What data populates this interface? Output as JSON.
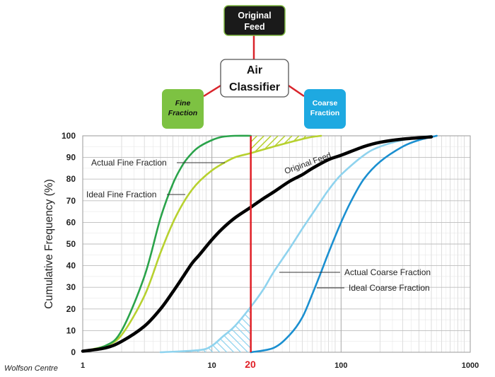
{
  "diagram": {
    "original_feed": {
      "line1": "Original",
      "line2": "Feed",
      "color": "#1a1a1a"
    },
    "classifier": {
      "line1": "Air",
      "line2": "Classifier"
    },
    "fine": {
      "line1": "Fine",
      "line2": "Fraction",
      "color": "#7dc242"
    },
    "coarse": {
      "line1": "Coarse",
      "line2": "Fraction",
      "color": "#1ea9e1"
    },
    "connector_color": "#d9242b"
  },
  "credit": "Wolfson Centre",
  "chart_data": {
    "type": "line",
    "x_scale": "log",
    "xlim": [
      1,
      1000
    ],
    "ylim": [
      0,
      100
    ],
    "ylabel": "Cumulative Frequency (%)",
    "xlabel": "",
    "x_ticks": [
      {
        "value": 1,
        "label": "1"
      },
      {
        "value": 10,
        "label": "10"
      },
      {
        "value": 100,
        "label": "100"
      },
      {
        "value": 1000,
        "label": "1000"
      }
    ],
    "y_ticks": [
      0,
      10,
      20,
      30,
      40,
      50,
      60,
      70,
      80,
      90,
      100
    ],
    "grid": true,
    "cut_size": {
      "value": 20,
      "label": "20",
      "color": "#e01f26"
    },
    "series": [
      {
        "name": "Original Feed",
        "color": "#000000",
        "points": [
          [
            1,
            0.5
          ],
          [
            1.5,
            2
          ],
          [
            2,
            5
          ],
          [
            3,
            12
          ],
          [
            4,
            20
          ],
          [
            5,
            28
          ],
          [
            6,
            35
          ],
          [
            7,
            41
          ],
          [
            8,
            45
          ],
          [
            10,
            52
          ],
          [
            12,
            57
          ],
          [
            15,
            62
          ],
          [
            20,
            67
          ],
          [
            25,
            71
          ],
          [
            30,
            74
          ],
          [
            40,
            79
          ],
          [
            50,
            82
          ],
          [
            60,
            85
          ],
          [
            80,
            89
          ],
          [
            100,
            91
          ],
          [
            150,
            95
          ],
          [
            200,
            97
          ],
          [
            300,
            98.5
          ],
          [
            500,
            99.5
          ]
        ]
      },
      {
        "name": "Actual Fine Fraction",
        "color": "#b7d12f",
        "points": [
          [
            1,
            0.5
          ],
          [
            1.5,
            3
          ],
          [
            2,
            8
          ],
          [
            3,
            26
          ],
          [
            4,
            46
          ],
          [
            5,
            60
          ],
          [
            6,
            69
          ],
          [
            7,
            75
          ],
          [
            8,
            79
          ],
          [
            10,
            84
          ],
          [
            12,
            87
          ],
          [
            15,
            90
          ],
          [
            20,
            92
          ],
          [
            30,
            95
          ],
          [
            40,
            97
          ],
          [
            50,
            98.5
          ],
          [
            60,
            99.5
          ],
          [
            70,
            100
          ]
        ]
      },
      {
        "name": "Ideal Fine Fraction",
        "color": "#2aa34a",
        "points": [
          [
            1,
            0.5
          ],
          [
            1.5,
            3
          ],
          [
            2,
            10
          ],
          [
            3,
            35
          ],
          [
            4,
            62
          ],
          [
            5,
            78
          ],
          [
            6,
            87
          ],
          [
            7,
            92
          ],
          [
            8,
            95
          ],
          [
            10,
            98
          ],
          [
            12,
            99.5
          ],
          [
            15,
            100
          ],
          [
            20,
            100
          ]
        ]
      },
      {
        "name": "Actual Coarse Fraction",
        "color": "#8fd3ee",
        "points": [
          [
            4,
            0
          ],
          [
            8,
            1
          ],
          [
            10,
            3
          ],
          [
            12,
            7
          ],
          [
            15,
            12
          ],
          [
            20,
            21
          ],
          [
            25,
            29
          ],
          [
            30,
            37
          ],
          [
            40,
            48
          ],
          [
            50,
            57
          ],
          [
            60,
            64
          ],
          [
            70,
            70
          ],
          [
            80,
            75
          ],
          [
            100,
            82
          ],
          [
            150,
            91
          ],
          [
            200,
            95
          ],
          [
            300,
            98
          ],
          [
            500,
            100
          ]
        ]
      },
      {
        "name": "Ideal Coarse Fraction",
        "color": "#1a8fd0",
        "points": [
          [
            20,
            0
          ],
          [
            30,
            2
          ],
          [
            40,
            8
          ],
          [
            50,
            16
          ],
          [
            60,
            27
          ],
          [
            70,
            37
          ],
          [
            80,
            46
          ],
          [
            100,
            60
          ],
          [
            120,
            70
          ],
          [
            150,
            80
          ],
          [
            200,
            88
          ],
          [
            300,
            95
          ],
          [
            400,
            98
          ],
          [
            550,
            100
          ]
        ]
      }
    ],
    "annotations": [
      {
        "text": "Actual Fine Fraction",
        "series": "Actual Fine Fraction"
      },
      {
        "text": "Ideal Fine Fraction",
        "series": "Ideal Fine Fraction"
      },
      {
        "text": "Original Feed",
        "series": "Original Feed"
      },
      {
        "text": "Actual Coarse Fraction",
        "series": "Actual Coarse Fraction"
      },
      {
        "text": "Ideal Coarse Fraction",
        "series": "Ideal Coarse Fraction"
      }
    ]
  }
}
